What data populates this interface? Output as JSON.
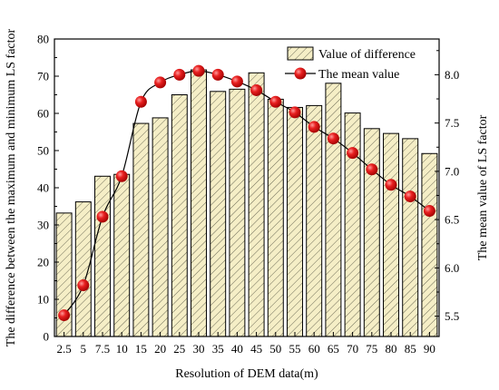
{
  "chart_data": {
    "type": "bar",
    "title": "",
    "xlabel": "Resolution of DEM data(m)",
    "ylabel_left": "The difference between the maximum and minimum LS factor",
    "ylabel_right": "The mean value of LS factor",
    "categories": [
      "2.5",
      "5",
      "7.5",
      "10",
      "15",
      "20",
      "25",
      "30",
      "35",
      "40",
      "45",
      "50",
      "55",
      "60",
      "65",
      "70",
      "75",
      "80",
      "85",
      "90"
    ],
    "y_left_lim": [
      0,
      80
    ],
    "y_left_ticks": [
      "0",
      "10",
      "20",
      "30",
      "40",
      "50",
      "60",
      "70",
      "80"
    ],
    "y_right_lim": [
      5.29,
      8.37
    ],
    "y_right_ticks": [
      "5.5",
      "6.0",
      "6.5",
      "7.0",
      "7.5",
      "8.0"
    ],
    "grid": false,
    "legend_position": "top-right",
    "series": [
      {
        "name": "Value of difference",
        "type": "bar",
        "axis": "left",
        "fill": "#f5eec6",
        "hatch": "diagonal",
        "values": [
          33.2,
          36.2,
          43.1,
          43.6,
          57.3,
          58.8,
          65.0,
          71.7,
          65.9,
          66.5,
          70.9,
          63.8,
          61.6,
          62.1,
          68.1,
          60.1,
          55.9,
          54.6,
          53.2,
          49.2
        ]
      },
      {
        "name": "The mean value",
        "type": "line",
        "axis": "right",
        "marker_color": "#e01010",
        "values": [
          5.51,
          5.82,
          6.53,
          6.95,
          7.72,
          7.92,
          8.0,
          8.04,
          8.0,
          7.93,
          7.84,
          7.72,
          7.61,
          7.46,
          7.34,
          7.19,
          7.02,
          6.86,
          6.74,
          6.59
        ]
      }
    ]
  }
}
